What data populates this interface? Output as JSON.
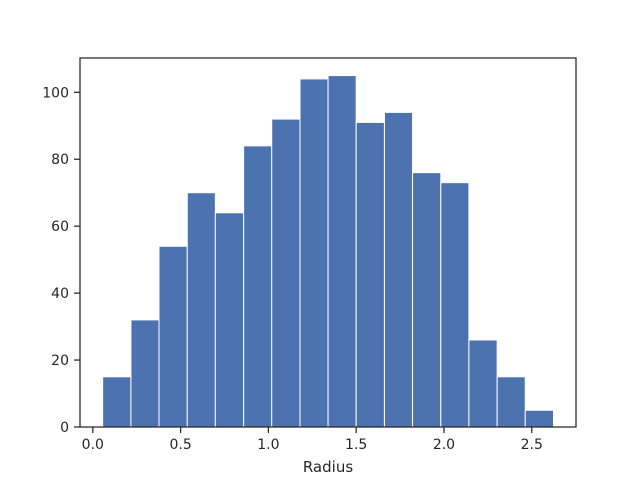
{
  "chart_data": {
    "type": "bar",
    "title": "",
    "xlabel": "Radius",
    "ylabel": "",
    "bin_edges": [
      0.056,
      0.217,
      0.377,
      0.538,
      0.698,
      0.859,
      1.019,
      1.18,
      1.34,
      1.5,
      1.661,
      1.821,
      1.982,
      2.142,
      2.303,
      2.463,
      2.624
    ],
    "values": [
      15,
      32,
      54,
      70,
      64,
      84,
      92,
      104,
      105,
      91,
      94,
      76,
      73,
      26,
      15,
      5
    ],
    "xlim": [
      -0.073,
      2.752
    ],
    "ylim": [
      0,
      110.25
    ],
    "xticks": [
      0.0,
      0.5,
      1.0,
      1.5,
      2.0,
      2.5
    ],
    "xtick_labels": [
      "0.0",
      "0.5",
      "1.0",
      "1.5",
      "2.0",
      "2.5"
    ],
    "yticks": [
      0,
      20,
      40,
      60,
      80,
      100
    ],
    "ytick_labels": [
      "0",
      "20",
      "40",
      "60",
      "80",
      "100"
    ],
    "grid": false,
    "bar_color": "#4c72b0",
    "bar_edge_color": "#ffffff"
  }
}
